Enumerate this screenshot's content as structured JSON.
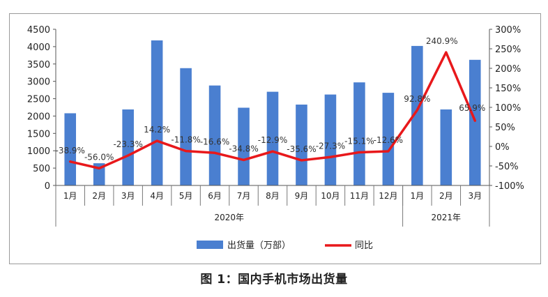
{
  "caption": "图 1：国内手机市场出货量",
  "chart_data": {
    "type": "bar",
    "months": [
      "1月",
      "2月",
      "3月",
      "4月",
      "5月",
      "6月",
      "7月",
      "8月",
      "9月",
      "10月",
      "11月",
      "12月",
      "1月",
      "2月",
      "3月"
    ],
    "year_groups": [
      {
        "label": "2020年",
        "count": 12
      },
      {
        "label": "2021年",
        "count": 3
      }
    ],
    "series": [
      {
        "name": "出货量（万部）",
        "type": "bar",
        "axis": "left",
        "color": "#4a7fd0",
        "values": [
          2080,
          640,
          2190,
          4180,
          3380,
          2880,
          2240,
          2700,
          2330,
          2620,
          2970,
          2670,
          4020,
          2190,
          3620
        ]
      },
      {
        "name": "同比",
        "type": "line",
        "axis": "right",
        "color": "#e8181b",
        "values": [
          -38.9,
          -56.0,
          -23.3,
          14.2,
          -11.8,
          -16.6,
          -34.8,
          -12.9,
          -35.6,
          -27.3,
          -15.1,
          -12.6,
          92.8,
          240.9,
          65.9
        ],
        "labels": [
          "-38.9%",
          "-56.0%",
          "-23.3%",
          "14.2%",
          "-11.8%",
          "-16.6%",
          "-34.8%",
          "-12.9%",
          "-35.6%",
          "-27.3%",
          "-15.1%",
          "-12.6%",
          "92.8%",
          "240.9%",
          "65.9%"
        ]
      }
    ],
    "left_axis": {
      "ylim": [
        0,
        4500
      ],
      "ticks": [
        "0",
        "500",
        "1000",
        "1500",
        "2000",
        "2500",
        "3000",
        "3500",
        "4000",
        "4500"
      ]
    },
    "right_axis": {
      "ylim": [
        -100,
        300
      ],
      "ticks": [
        "-100%",
        "-50%",
        "0%",
        "50%",
        "100%",
        "150%",
        "200%",
        "250%",
        "300%"
      ]
    },
    "legend_position": "bottom",
    "grid": false
  }
}
